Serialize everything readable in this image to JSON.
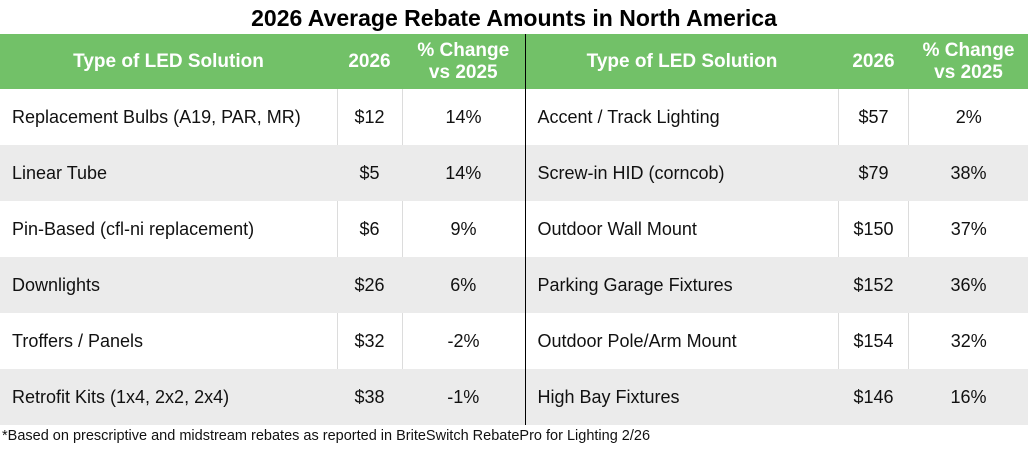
{
  "title": "2026 Average Rebate Amounts in North America",
  "headers": {
    "type": "Type of LED Solution",
    "year": "2026",
    "change_line1": "% Change",
    "change_line2": "vs 2025"
  },
  "theme": {
    "header_bg": "#72c168",
    "stripe_bg": "#ebebeb"
  },
  "left_rows": [
    {
      "type": "Replacement Bulbs (A19, PAR, MR)",
      "rebate": "$12",
      "change": "14%"
    },
    {
      "type": "Linear Tube",
      "rebate": "$5",
      "change": "14%"
    },
    {
      "type": "Pin-Based (cfl-ni replacement)",
      "rebate": "$6",
      "change": "9%"
    },
    {
      "type": "Downlights",
      "rebate": "$26",
      "change": "6%"
    },
    {
      "type": "Troffers / Panels",
      "rebate": "$32",
      "change": "-2%"
    },
    {
      "type": "Retrofit Kits (1x4, 2x2, 2x4)",
      "rebate": "$38",
      "change": "-1%"
    }
  ],
  "right_rows": [
    {
      "type": "Accent / Track Lighting",
      "rebate": "$57",
      "change": "2%"
    },
    {
      "type": "Screw-in HID (corncob)",
      "rebate": "$79",
      "change": "38%"
    },
    {
      "type": "Outdoor Wall Mount",
      "rebate": "$150",
      "change": "37%"
    },
    {
      "type": "Parking Garage Fixtures",
      "rebate": "$152",
      "change": "36%"
    },
    {
      "type": "Outdoor Pole/Arm Mount",
      "rebate": "$154",
      "change": "32%"
    },
    {
      "type": "High Bay Fixtures",
      "rebate": "$146",
      "change": "16%"
    }
  ],
  "footnote": "*Based on prescriptive and midstream rebates as reported in BriteSwitch RebatePro for Lighting 2/26"
}
